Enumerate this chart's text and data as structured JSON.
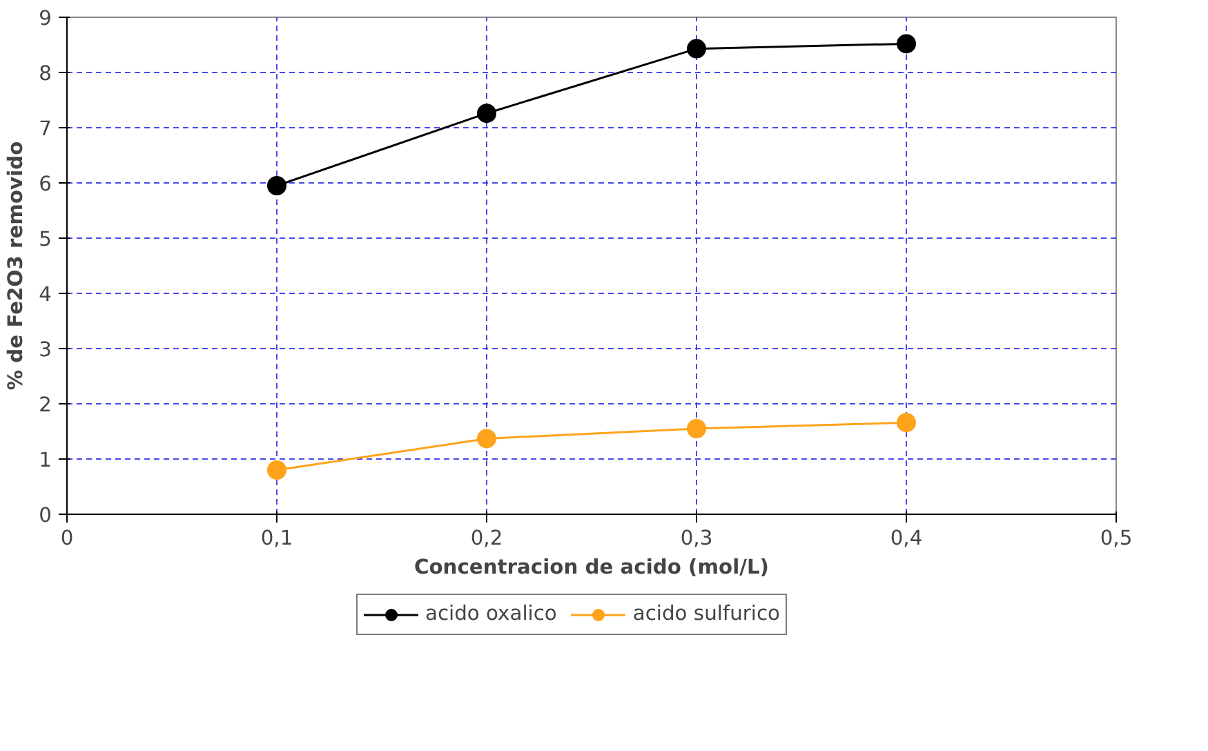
{
  "chart_data": {
    "type": "line",
    "xlabel": "Concentracion de acido (mol/L)",
    "ylabel": "% de Fe2O3 removido",
    "x": [
      0.1,
      0.2,
      0.3,
      0.4
    ],
    "series": [
      {
        "name": "acido oxalico",
        "color": "#000000",
        "values": [
          5.95,
          7.26,
          8.43,
          8.52
        ]
      },
      {
        "name": "acido sulfurico",
        "color": "#ffa31a",
        "values": [
          0.8,
          1.37,
          1.55,
          1.66
        ]
      }
    ],
    "xlim": [
      0,
      0.5
    ],
    "xticks": [
      0,
      {
        "value": 0.1,
        "label": "0,1"
      },
      {
        "value": 0.2,
        "label": "0,2"
      },
      {
        "value": 0.3,
        "label": "0,3"
      },
      {
        "value": 0.4,
        "label": "0,4"
      },
      {
        "value": 0.5,
        "label": "0,5"
      }
    ],
    "ylim": [
      0,
      9
    ],
    "yticks": [
      0,
      1,
      2,
      3,
      4,
      5,
      6,
      7,
      8,
      9
    ],
    "grid": true,
    "legend": "bottom",
    "marker": "circle",
    "line_style": "solid"
  }
}
